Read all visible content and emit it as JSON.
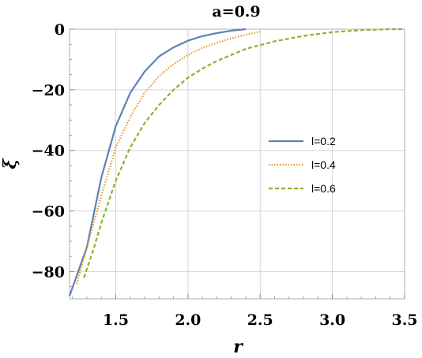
{
  "chart_data": {
    "type": "line",
    "title": "a=0.9",
    "xlabel": "r",
    "ylabel": "ξ",
    "xlim": [
      1.18,
      3.5
    ],
    "ylim": [
      -89,
      0
    ],
    "xticks": [
      1.5,
      2.0,
      2.5,
      3.0,
      3.5
    ],
    "xtick_labels": [
      "1.5",
      "2.0",
      "2.5",
      "3.0",
      "3.5"
    ],
    "yticks": [
      0,
      -20,
      -40,
      -60,
      -80
    ],
    "ytick_labels": [
      "0",
      "−20",
      "−40",
      "−60",
      "−80"
    ],
    "grid": true,
    "legend_position": "right-middle",
    "series": [
      {
        "name": "l=0.2",
        "color": "#5e81b5",
        "style": "solid",
        "x": [
          1.18,
          1.3,
          1.4,
          1.5,
          1.6,
          1.7,
          1.8,
          1.9,
          2.0,
          2.1,
          2.2,
          2.3,
          2.4
        ],
        "y": [
          -88,
          -72,
          -49,
          -32,
          -21,
          -14,
          -9,
          -6,
          -3.8,
          -2.3,
          -1.3,
          -0.5,
          0
        ]
      },
      {
        "name": "l=0.4",
        "color": "#e19c24",
        "style": "dotted",
        "x": [
          1.23,
          1.3,
          1.4,
          1.5,
          1.6,
          1.7,
          1.8,
          1.9,
          2.0,
          2.1,
          2.2,
          2.3,
          2.4,
          2.5
        ],
        "y": [
          -84,
          -72,
          -55,
          -39,
          -29,
          -21,
          -15.5,
          -11.5,
          -8.5,
          -6.2,
          -4.5,
          -3.0,
          -1.8,
          -0.8
        ]
      },
      {
        "name": "l=0.6",
        "color": "#8fb032",
        "style": "dashed",
        "x": [
          1.28,
          1.35,
          1.4,
          1.5,
          1.6,
          1.7,
          1.8,
          1.9,
          2.0,
          2.1,
          2.2,
          2.4,
          2.6,
          2.8,
          3.0,
          3.2,
          3.4,
          3.5
        ],
        "y": [
          -82,
          -72,
          -64,
          -50,
          -39,
          -31,
          -25,
          -20,
          -16,
          -13,
          -10.5,
          -6.5,
          -4,
          -2.2,
          -1,
          -0.3,
          0,
          0
        ]
      }
    ]
  }
}
